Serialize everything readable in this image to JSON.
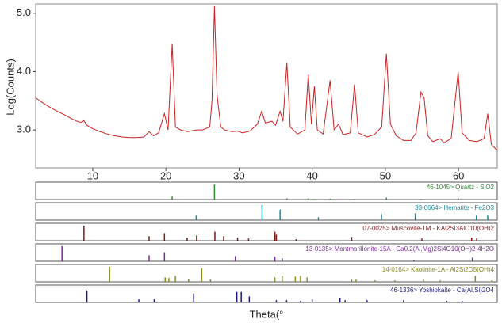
{
  "chart_data": [
    {
      "type": "line",
      "ylabel": "Log(Counts)",
      "xlabel": "Theta(°",
      "color": "#cc2222",
      "xlim": [
        2.2,
        65.3
      ],
      "ylim": [
        2.35,
        5.16
      ],
      "xticks": [
        10,
        20,
        30,
        40,
        50,
        60
      ],
      "yticks": [
        {
          "value": 3,
          "label": "3.0"
        },
        {
          "value": 4,
          "label": "4.0"
        },
        {
          "value": 5,
          "label": "5.0"
        }
      ],
      "x": [
        2.2,
        3,
        4,
        5,
        6,
        7,
        8,
        8.5,
        8.8,
        9.2,
        10,
        11,
        12,
        13,
        14,
        15,
        16,
        17,
        17.7,
        18.3,
        19,
        19.8,
        20.3,
        20.86,
        21.3,
        22,
        23,
        24.2,
        25,
        26,
        26.3,
        26.64,
        27,
        27.5,
        28,
        29,
        29.8,
        30.5,
        31.5,
        32.5,
        33.1,
        33.6,
        34.5,
        35,
        35.6,
        36,
        36.54,
        37,
        38,
        39,
        39.46,
        39.9,
        40.3,
        40.7,
        41.5,
        42.45,
        43,
        43.6,
        44.2,
        45.2,
        45.8,
        46.3,
        47.5,
        48.5,
        49.5,
        50.14,
        50.7,
        51.5,
        52.5,
        53.5,
        54.2,
        54.87,
        55.3,
        55.8,
        56.5,
        57.5,
        58,
        59,
        59.96,
        60.5,
        61.5,
        62.5,
        63.5,
        64,
        64.5,
        65.3
      ],
      "values": [
        3.55,
        3.48,
        3.4,
        3.33,
        3.27,
        3.2,
        3.14,
        3.13,
        3.16,
        3.08,
        3.02,
        2.97,
        2.93,
        2.9,
        2.88,
        2.87,
        2.87,
        2.88,
        2.97,
        2.9,
        2.95,
        3.28,
        3.0,
        4.48,
        3.05,
        3.0,
        2.97,
        3.0,
        3.0,
        3.05,
        3.5,
        5.12,
        3.6,
        3.05,
        3.0,
        2.97,
        2.98,
        2.95,
        2.98,
        3.1,
        3.32,
        3.12,
        3.15,
        3.08,
        3.32,
        3.15,
        4.15,
        3.05,
        2.93,
        3.0,
        3.95,
        3.1,
        3.75,
        3.0,
        2.93,
        3.85,
        3.0,
        3.1,
        2.92,
        2.95,
        3.78,
        2.95,
        2.88,
        2.92,
        3.05,
        4.31,
        3.1,
        2.9,
        2.82,
        2.82,
        2.95,
        3.65,
        3.55,
        2.9,
        2.8,
        2.85,
        2.78,
        2.85,
        4.0,
        2.95,
        2.82,
        2.8,
        2.85,
        3.28,
        2.75,
        2.65
      ]
    },
    {
      "type": "stick",
      "title": "46-1045> Quartz - SiO2",
      "color": "#2e8b2e",
      "xlim": [
        2.2,
        65.3
      ],
      "ylim": [
        0,
        100
      ],
      "x": [
        20.86,
        26.64,
        36.54,
        39.46,
        40.3,
        42.45,
        45.8,
        50.14,
        54.87,
        59.96,
        64.0
      ],
      "values": [
        20,
        100,
        8,
        8,
        4,
        6,
        4,
        13,
        4,
        9,
        2
      ]
    },
    {
      "type": "stick",
      "title": "33-0664> Hematite - Fe2O3",
      "color": "#1a8a9a",
      "xlim": [
        2.2,
        65.3
      ],
      "ylim": [
        0,
        100
      ],
      "x": [
        24.14,
        33.15,
        35.61,
        40.85,
        49.48,
        54.09,
        62.45,
        64.0
      ],
      "values": [
        30,
        100,
        70,
        20,
        40,
        45,
        30,
        30
      ]
    },
    {
      "type": "stick",
      "title": "07-0025> Muscovite-1M - KAl2Si3AlO10(OH)2",
      "color": "#7a1a1a",
      "xlim": [
        2.2,
        65.3
      ],
      "ylim": [
        0,
        100
      ],
      "x": [
        8.8,
        17.7,
        19.8,
        22.9,
        24.2,
        26.7,
        27.9,
        29.8,
        31.3,
        34.9,
        35.1,
        37.8,
        45.4,
        55.0,
        61.8,
        62.5
      ],
      "values": [
        100,
        30,
        50,
        20,
        35,
        60,
        30,
        20,
        15,
        60,
        40,
        10,
        25,
        15,
        20,
        15
      ]
    },
    {
      "type": "stick",
      "title": "13-0135> Montmorillonite-15A - Ca0.2(Al,Mg)2Si4O10(OH)2·4H2O",
      "color": "#7a2a9a",
      "xlim": [
        2.2,
        65.3
      ],
      "ylim": [
        0,
        100
      ],
      "x": [
        5.8,
        17.7,
        19.8,
        29.5,
        34.9,
        35.9,
        53.9,
        61.9
      ],
      "values": [
        100,
        40,
        60,
        35,
        30,
        20,
        10,
        25
      ]
    },
    {
      "type": "stick",
      "title": "14-0164> Kaolinite-1A - Al2Si2O5(OH)4",
      "color": "#8a8a1a",
      "xlim": [
        2.2,
        65.3
      ],
      "ylim": [
        0,
        100
      ],
      "x": [
        12.3,
        19.9,
        20.4,
        21.3,
        23.1,
        24.9,
        26.1,
        34.9,
        35.9,
        37.7,
        38.4,
        39.3,
        45.4,
        46.0,
        48.6,
        51.3,
        55.2,
        57.5,
        62.3,
        64.6
      ],
      "values": [
        100,
        30,
        25,
        40,
        20,
        90,
        15,
        30,
        40,
        35,
        40,
        30,
        15,
        15,
        10,
        10,
        20,
        10,
        40,
        10
      ]
    },
    {
      "type": "stick",
      "title": "46-1336> Yoshiokaite - Ca(Al,Si)2O4",
      "color": "#1a1a7a",
      "xlim": [
        2.2,
        65.3
      ],
      "ylim": [
        0,
        100
      ],
      "x": [
        9.2,
        16.3,
        18.4,
        23.8,
        29.7,
        30.3,
        31.4,
        35.1,
        36.5,
        38.4,
        40.0,
        43.8,
        44.5,
        47.5,
        52.5,
        58.4,
        60.5
      ],
      "values": [
        80,
        20,
        20,
        60,
        70,
        70,
        40,
        15,
        15,
        10,
        20,
        30,
        15,
        15,
        15,
        10,
        10
      ]
    }
  ]
}
